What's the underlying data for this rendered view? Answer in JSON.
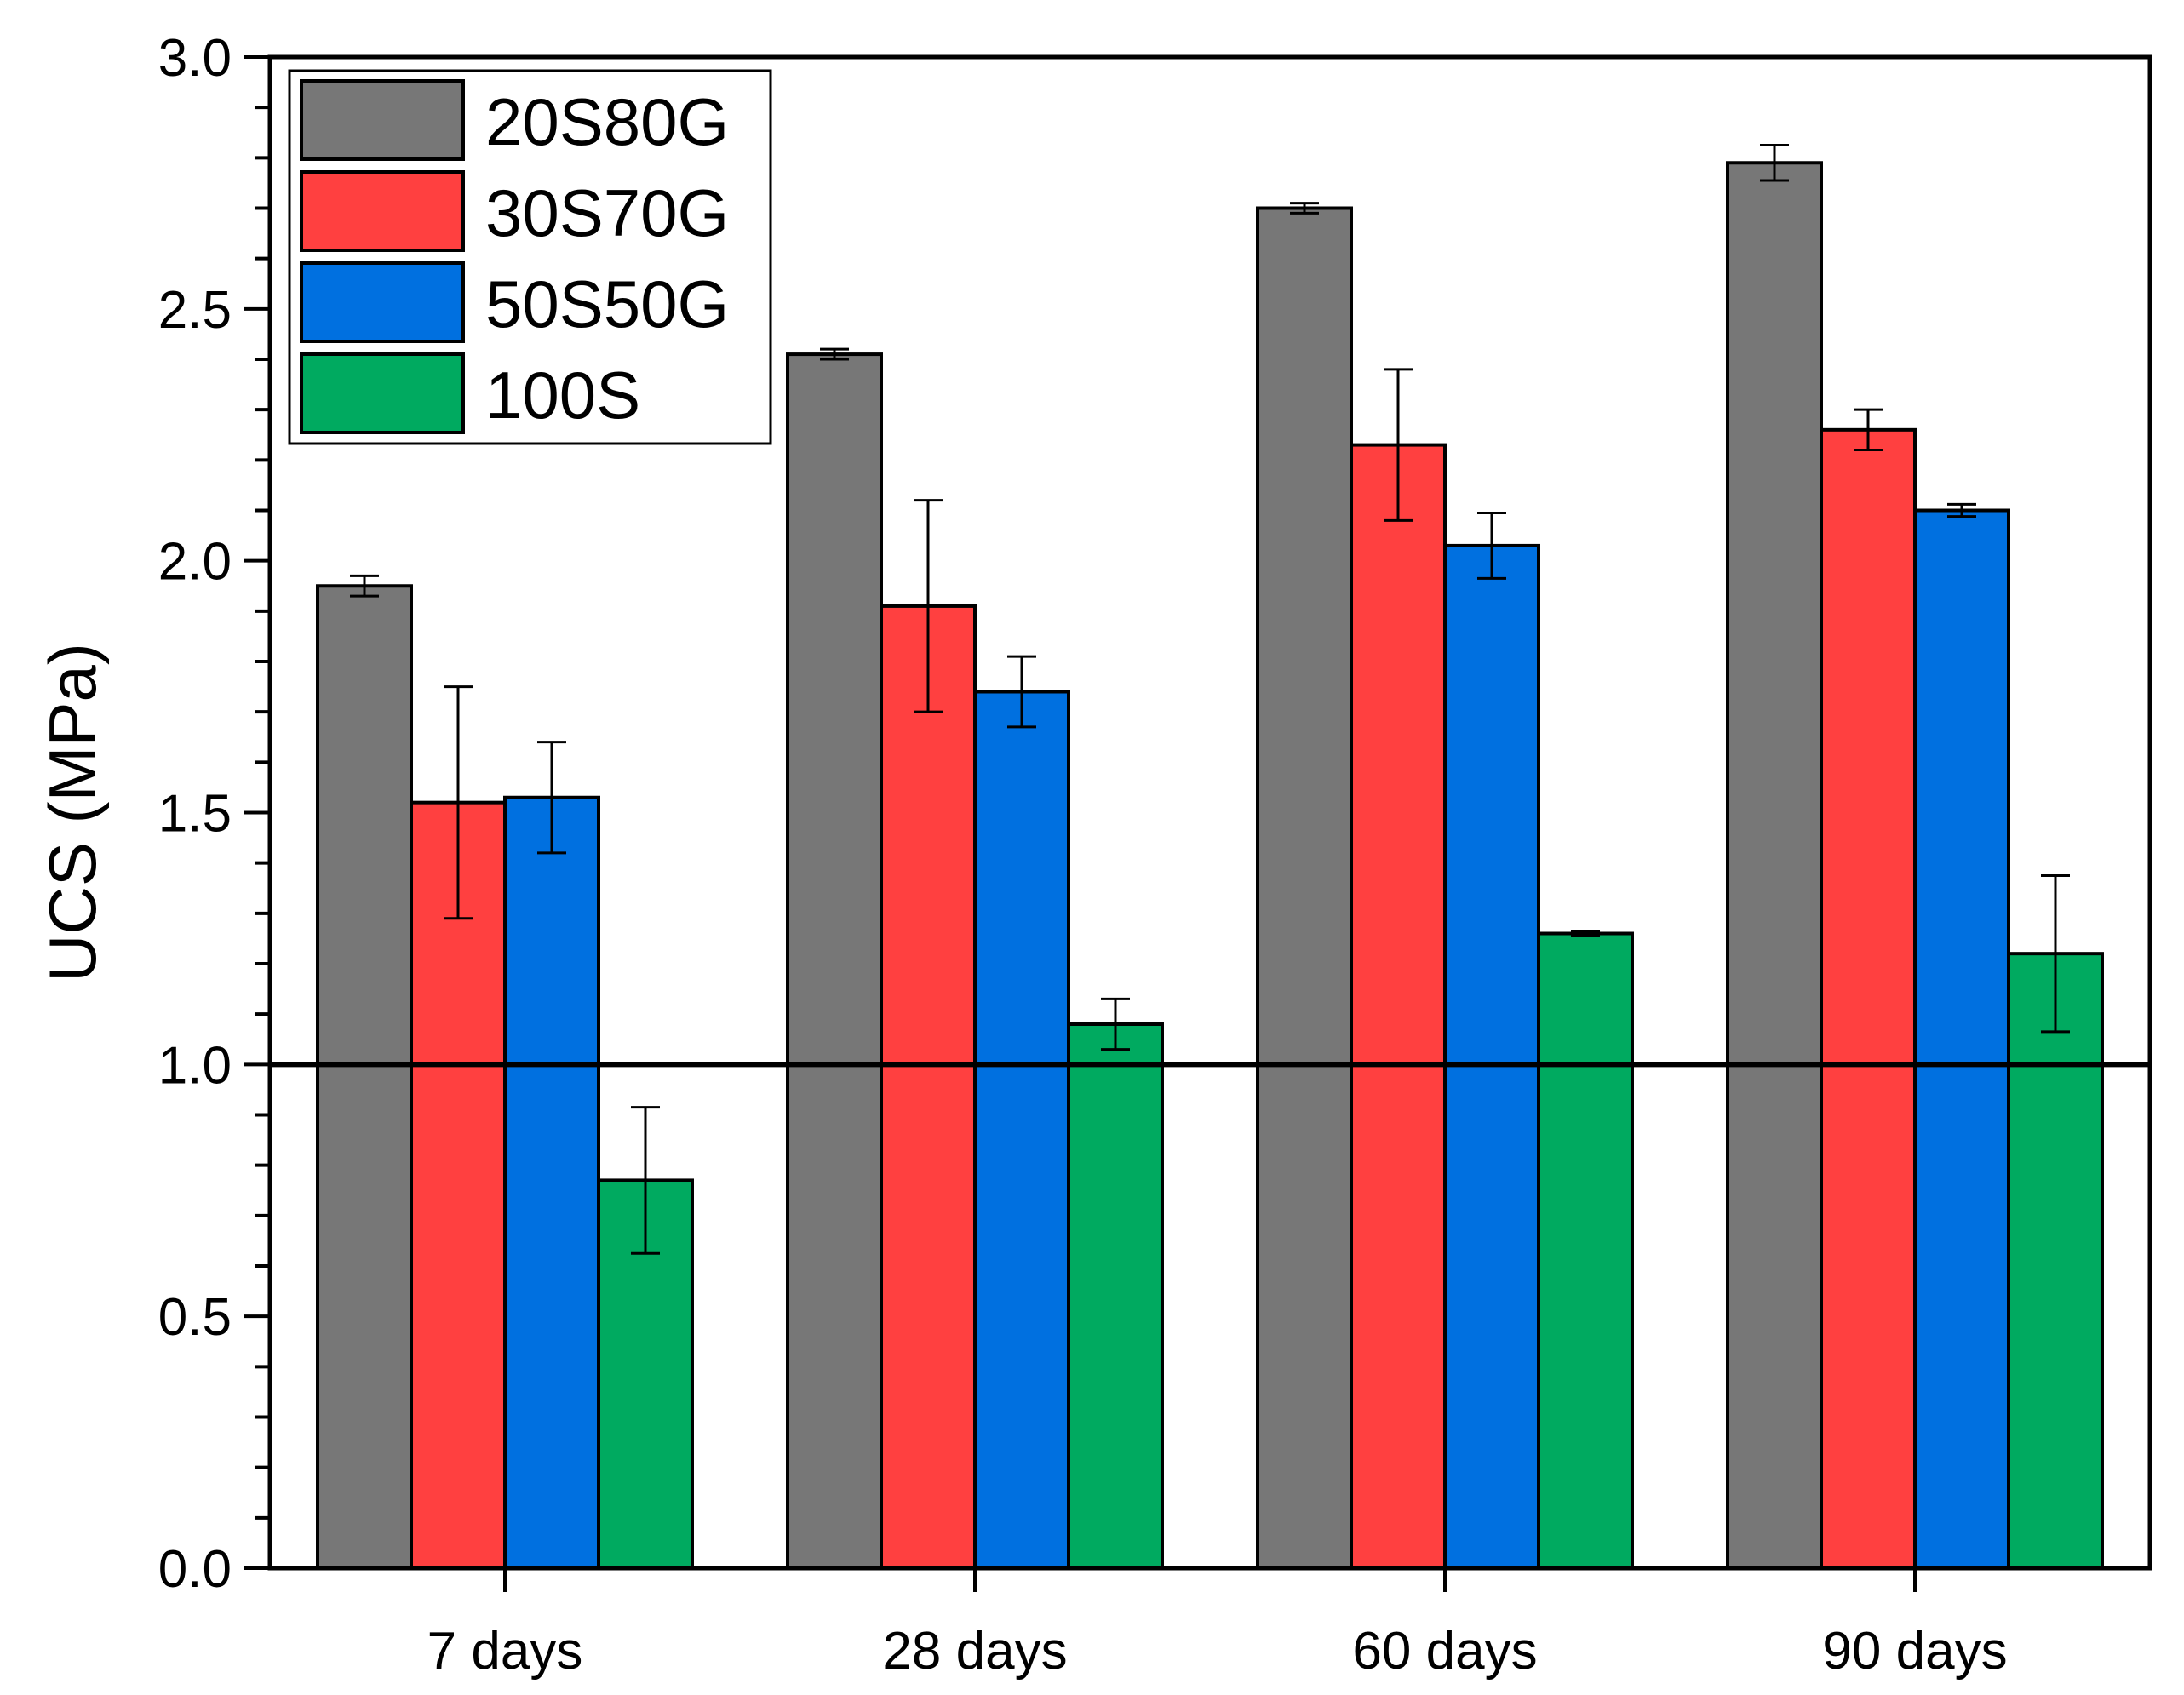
{
  "chart_data": {
    "type": "bar",
    "title": "",
    "xlabel": "",
    "ylabel": "UCS (MPa)",
    "ylim": [
      0,
      3.0
    ],
    "yticks": [
      "0.0",
      "0.5",
      "1.0",
      "1.5",
      "2.0",
      "2.5",
      "3.0"
    ],
    "categories": [
      "7 days",
      "28 days",
      "60 days",
      "90 days"
    ],
    "reference_line": 1.0,
    "legend_position": "top-left",
    "grid": false,
    "series": [
      {
        "name": "20S80G",
        "color": "#777777",
        "values": [
          1.95,
          2.41,
          2.7,
          2.79
        ],
        "errors": [
          0.02,
          0.01,
          0.01,
          0.035
        ]
      },
      {
        "name": "30S70G",
        "color": "#ff4040",
        "values": [
          1.52,
          1.91,
          2.23,
          2.26
        ],
        "errors": [
          0.23,
          0.21,
          0.15,
          0.04
        ]
      },
      {
        "name": "50S50G",
        "color": "#0070e0",
        "values": [
          1.53,
          1.74,
          2.03,
          2.1
        ],
        "errors": [
          0.11,
          0.07,
          0.065,
          0.012
        ]
      },
      {
        "name": "100S",
        "color": "#00aa60",
        "values": [
          0.77,
          1.08,
          1.26,
          1.22
        ],
        "errors": [
          0.145,
          0.05,
          0.005,
          0.155
        ]
      }
    ]
  }
}
